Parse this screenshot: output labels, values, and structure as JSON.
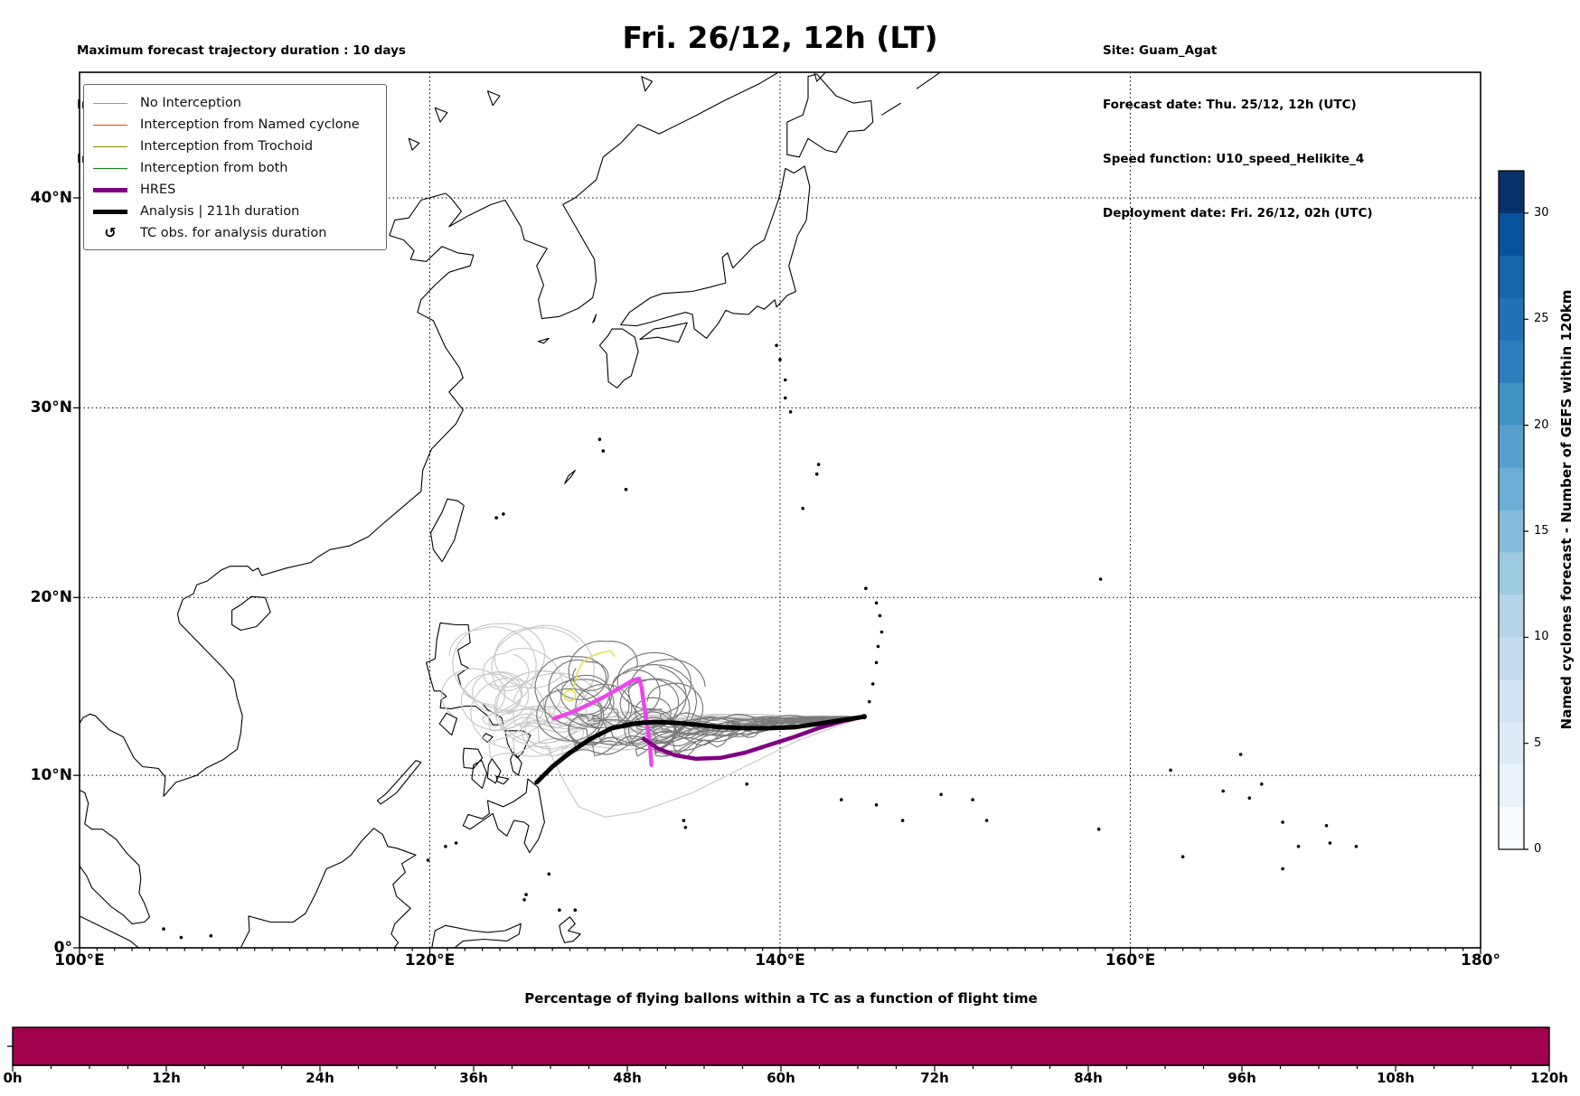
{
  "header": {
    "info_left": [
      "Maximum forecast trajectory duration : 10 days",
      "Intercept distance: 300km",
      "Intercept RW2: 12km/h2"
    ],
    "title": "Fri. 26/12, 12h (LT)",
    "info_right": [
      "Site: Guam_Agat",
      "Forecast date: Thu. 25/12, 12h (UTC)",
      "Speed function: U10_speed_Helikite_4",
      "Deployment date: Fri. 26/12, 02h (UTC)"
    ]
  },
  "legend": {
    "items": [
      {
        "label": "No Interception",
        "color": "#999999",
        "width": 1.5,
        "kind": "line"
      },
      {
        "label": "Interception from Named cyclone",
        "color": "#FF4500",
        "width": 1.5,
        "kind": "line"
      },
      {
        "label": "Interception from Trochoid",
        "color": "#8B8B00",
        "width": 1.5,
        "kind": "line"
      },
      {
        "label": "Interception from both",
        "color": "#0A8A0A",
        "width": 1.5,
        "kind": "line"
      },
      {
        "label": "HRES",
        "color": "#800080",
        "width": 5,
        "kind": "line"
      },
      {
        "label": "Analysis | 211h duration",
        "color": "#000000",
        "width": 5,
        "kind": "line"
      },
      {
        "label": "TC obs. for analysis duration",
        "color": "#000000",
        "glyph": "↺",
        "kind": "marker"
      }
    ]
  },
  "map": {
    "xtick_labels": [
      "100°E",
      "120°E",
      "140°E",
      "160°E",
      "180°"
    ],
    "ytick_labels": [
      "0°",
      "10°N",
      "20°N",
      "30°N",
      "40°N"
    ],
    "gridline_lons": [
      120,
      140,
      160
    ],
    "gridline_lats": [
      10,
      20,
      30,
      40
    ]
  },
  "colorbar": {
    "label": "Named cyclones forecast - Number of GEFS within 120km",
    "tick_labels": [
      "0",
      "5",
      "10",
      "15",
      "20",
      "25",
      "30"
    ],
    "tick_values": [
      0,
      5,
      10,
      15,
      20,
      25,
      30
    ],
    "vmin": 0,
    "vmax": 32,
    "segment_colors_top_to_bottom": [
      "#08306b",
      "#08519c",
      "#1864aa",
      "#2171b5",
      "#2f7ebc",
      "#4292c6",
      "#57a0ce",
      "#6baed6",
      "#85bcdb",
      "#9ecae1",
      "#b5d4e9",
      "#c6dbef",
      "#d2e3f3",
      "#deebf7",
      "#eaf3fb",
      "#f7fbff"
    ]
  },
  "chart_data": [
    {
      "type": "line",
      "name": "balloon-trajectory-map",
      "projection": "mercator",
      "lon_range": [
        100,
        180
      ],
      "lat_range": [
        0,
        45.4
      ],
      "site": {
        "name": "Guam_Agat",
        "lon": 144.8,
        "lat": 13.35
      },
      "series": [
        {
          "name": "Analysis | 211h duration",
          "color": "#000000",
          "width": 5,
          "points": [
            [
              126.1,
              9.6
            ],
            [
              127.0,
              10.5
            ],
            [
              128.0,
              11.3
            ],
            [
              129.2,
              12.1
            ],
            [
              130.4,
              12.7
            ],
            [
              131.6,
              12.95
            ],
            [
              132.8,
              13.05
            ],
            [
              134.0,
              13.0
            ],
            [
              135.2,
              12.9
            ],
            [
              136.6,
              12.75
            ],
            [
              138.0,
              12.7
            ],
            [
              139.4,
              12.7
            ],
            [
              140.8,
              12.75
            ],
            [
              142.2,
              12.95
            ],
            [
              143.5,
              13.15
            ],
            [
              144.8,
              13.35
            ]
          ]
        },
        {
          "name": "HRES",
          "color": "#800080",
          "width": 4.5,
          "points": [
            [
              132.2,
              12.1
            ],
            [
              133.0,
              11.55
            ],
            [
              134.0,
              11.15
            ],
            [
              135.2,
              10.95
            ],
            [
              136.6,
              11.0
            ],
            [
              138.0,
              11.3
            ],
            [
              139.4,
              11.75
            ],
            [
              140.8,
              12.2
            ],
            [
              142.2,
              12.7
            ],
            [
              143.6,
              13.1
            ],
            [
              144.8,
              13.35
            ]
          ]
        },
        {
          "name": "HRES balloon trajectory",
          "color": "#EE44EE",
          "width": 4.5,
          "points": [
            [
              127.1,
              13.25
            ],
            [
              128.0,
              13.55
            ],
            [
              129.0,
              14.0
            ],
            [
              130.0,
              14.5
            ],
            [
              130.9,
              15.0
            ],
            [
              131.6,
              15.4
            ],
            [
              131.95,
              15.5
            ],
            [
              132.1,
              15.0
            ],
            [
              132.2,
              14.2
            ],
            [
              132.35,
              13.3
            ],
            [
              132.5,
              12.3
            ],
            [
              132.6,
              11.4
            ],
            [
              132.65,
              10.6
            ]
          ]
        },
        {
          "name": "Trochoid interception",
          "color": "#E4DF4E",
          "width": 1.6,
          "points": [
            [
              128.15,
              14.85
            ],
            [
              128.3,
              15.3
            ],
            [
              128.45,
              15.9
            ],
            [
              128.7,
              16.4
            ],
            [
              129.2,
              16.75
            ],
            [
              129.8,
              16.95
            ],
            [
              130.3,
              17.05
            ],
            [
              130.55,
              16.75
            ]
          ]
        }
      ],
      "ensemble": {
        "no_interception_color": "#C9C9C9",
        "gefs_color": "#7B7B7B",
        "count_light": 14,
        "count_dark": 20
      }
    },
    {
      "type": "bar",
      "title": "Percentage of flying ballons within a TC as a function of flight time",
      "x_tick_labels": [
        "0h",
        "12h",
        "24h",
        "36h",
        "48h",
        "60h",
        "72h",
        "84h",
        "96h",
        "108h",
        "120h"
      ],
      "x_hours": [
        0,
        12,
        24,
        36,
        48,
        60,
        72,
        84,
        96,
        108,
        120
      ],
      "value_percent": 100,
      "bar_color": "#A2024D"
    }
  ]
}
